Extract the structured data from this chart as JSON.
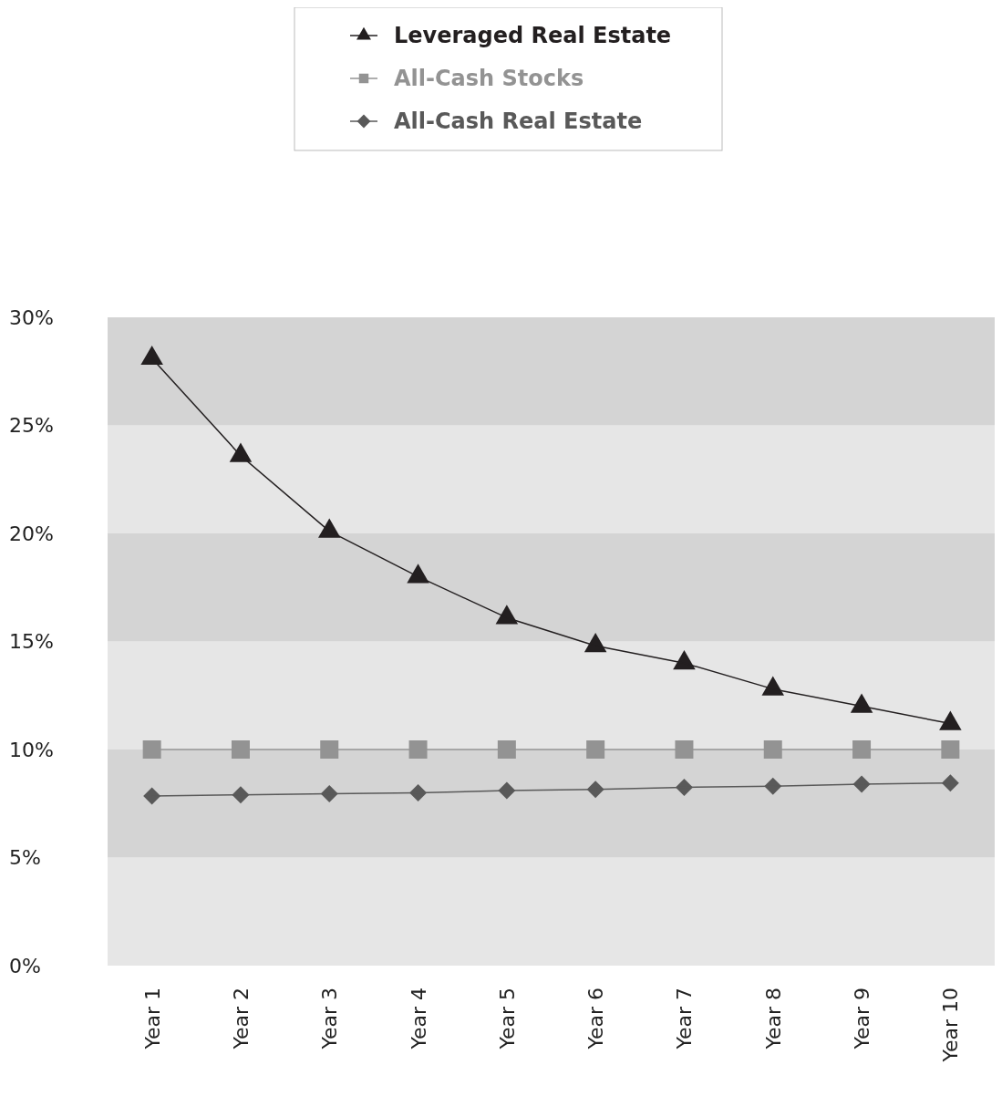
{
  "chart_data": {
    "type": "line",
    "categories": [
      "Year 1",
      "Year 2",
      "Year 3",
      "Year 4",
      "Year 5",
      "Year 6",
      "Year 7",
      "Year 8",
      "Year 9",
      "Year 10"
    ],
    "series": [
      {
        "name": "Leveraged Real Estate",
        "color": "#231f20",
        "marker": "triangle",
        "values": [
          28.1,
          23.6,
          20.1,
          18.0,
          16.1,
          14.8,
          14.0,
          12.8,
          12.0,
          11.2
        ]
      },
      {
        "name": "All-Cash Stocks",
        "color": "#939393",
        "marker": "square",
        "values": [
          10,
          10,
          10,
          10,
          10,
          10,
          10,
          10,
          10,
          10
        ]
      },
      {
        "name": "All-Cash Real Estate",
        "color": "#595959",
        "marker": "diamond",
        "values": [
          7.85,
          7.9,
          7.95,
          8.0,
          8.1,
          8.15,
          8.25,
          8.3,
          8.4,
          8.45
        ]
      }
    ],
    "ylim": [
      0,
      30
    ],
    "yticks": [
      {
        "value": 0,
        "label": "0%"
      },
      {
        "value": 5,
        "label": "5%"
      },
      {
        "value": 10,
        "label": "10%"
      },
      {
        "value": 15,
        "label": "15%"
      },
      {
        "value": 20,
        "label": "20%"
      },
      {
        "value": 25,
        "label": "25%"
      },
      {
        "value": 30,
        "label": "30%"
      }
    ],
    "bands": [
      {
        "axis": "y",
        "from": 0,
        "to": 5,
        "color": "#e6e6e6"
      },
      {
        "axis": "y",
        "from": 5,
        "to": 10,
        "color": "#d4d4d4"
      },
      {
        "axis": "y",
        "from": 10,
        "to": 15,
        "color": "#e6e6e6"
      },
      {
        "axis": "y",
        "from": 15,
        "to": 20,
        "color": "#d4d4d4"
      },
      {
        "axis": "y",
        "from": 20,
        "to": 25,
        "color": "#e6e6e6"
      },
      {
        "axis": "y",
        "from": 25,
        "to": 30,
        "color": "#d4d4d4"
      }
    ],
    "legend": "top"
  }
}
